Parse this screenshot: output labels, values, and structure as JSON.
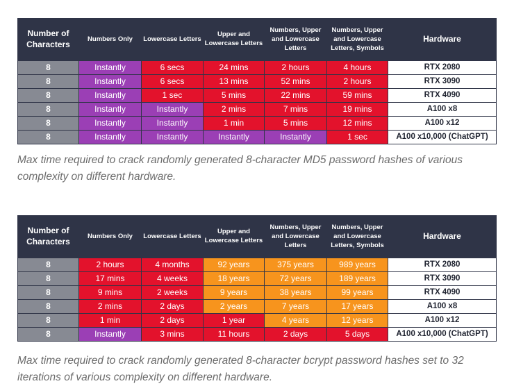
{
  "headers": {
    "chars": "Number of Characters",
    "numbers_only": "Numbers Only",
    "lowercase": "Lowercase Letters",
    "upper_lower": "Upper and Lowercase Letters",
    "num_upper_lower": "Numbers, Upper and Lowercase Letters",
    "num_upper_lower_sym": "Numbers, Upper and Lowercase Letters, Symbols",
    "hardware": "Hardware"
  },
  "colors": {
    "purple": "#9b3fb5",
    "red": "#e3122c",
    "orange": "#f7941d",
    "header": "#2f3447",
    "gray": "#878a93"
  },
  "md5": {
    "rows": [
      {
        "chars": "8",
        "cells": [
          {
            "text": "Instantly",
            "color": "purple"
          },
          {
            "text": "6 secs",
            "color": "red"
          },
          {
            "text": "24 mins",
            "color": "red"
          },
          {
            "text": "2 hours",
            "color": "red"
          },
          {
            "text": "4 hours",
            "color": "red"
          }
        ],
        "hardware": "RTX 2080"
      },
      {
        "chars": "8",
        "cells": [
          {
            "text": "Instantly",
            "color": "purple"
          },
          {
            "text": "6 secs",
            "color": "red"
          },
          {
            "text": "13 mins",
            "color": "red"
          },
          {
            "text": "52 mins",
            "color": "red"
          },
          {
            "text": "2 hours",
            "color": "red"
          }
        ],
        "hardware": "RTX 3090"
      },
      {
        "chars": "8",
        "cells": [
          {
            "text": "Instantly",
            "color": "purple"
          },
          {
            "text": "1 sec",
            "color": "red"
          },
          {
            "text": "5 mins",
            "color": "red"
          },
          {
            "text": "22 mins",
            "color": "red"
          },
          {
            "text": "59 mins",
            "color": "red"
          }
        ],
        "hardware": "RTX 4090"
      },
      {
        "chars": "8",
        "cells": [
          {
            "text": "Instantly",
            "color": "purple"
          },
          {
            "text": "Instantly",
            "color": "purple"
          },
          {
            "text": "2 mins",
            "color": "red"
          },
          {
            "text": "7 mins",
            "color": "red"
          },
          {
            "text": "19 mins",
            "color": "red"
          }
        ],
        "hardware": "A100 x8"
      },
      {
        "chars": "8",
        "cells": [
          {
            "text": "Instantly",
            "color": "purple"
          },
          {
            "text": "Instantly",
            "color": "purple"
          },
          {
            "text": "1 min",
            "color": "red"
          },
          {
            "text": "5 mins",
            "color": "red"
          },
          {
            "text": "12 mins",
            "color": "red"
          }
        ],
        "hardware": "A100 x12"
      },
      {
        "chars": "8",
        "cells": [
          {
            "text": "Instantly",
            "color": "purple"
          },
          {
            "text": "Instantly",
            "color": "purple"
          },
          {
            "text": "Instantly",
            "color": "purple"
          },
          {
            "text": "Instantly",
            "color": "purple"
          },
          {
            "text": "1 sec",
            "color": "red"
          }
        ],
        "hardware": "A100 x10,000 (ChatGPT)"
      }
    ],
    "caption": "Max time required to crack randomly generated 8-character MD5 password hashes of various complexity on different hardware."
  },
  "bcrypt": {
    "rows": [
      {
        "chars": "8",
        "cells": [
          {
            "text": "2 hours",
            "color": "red"
          },
          {
            "text": "4 months",
            "color": "red"
          },
          {
            "text": "92 years",
            "color": "orange"
          },
          {
            "text": "375 years",
            "color": "orange"
          },
          {
            "text": "989 years",
            "color": "orange"
          }
        ],
        "hardware": "RTX 2080"
      },
      {
        "chars": "8",
        "cells": [
          {
            "text": "17 mins",
            "color": "red"
          },
          {
            "text": "4 weeks",
            "color": "red"
          },
          {
            "text": "18 years",
            "color": "orange"
          },
          {
            "text": "72 years",
            "color": "orange"
          },
          {
            "text": "189 years",
            "color": "orange"
          }
        ],
        "hardware": "RTX 3090"
      },
      {
        "chars": "8",
        "cells": [
          {
            "text": "9 mins",
            "color": "red"
          },
          {
            "text": "2 weeks",
            "color": "red"
          },
          {
            "text": "9 years",
            "color": "orange"
          },
          {
            "text": "38 years",
            "color": "orange"
          },
          {
            "text": "99 years",
            "color": "orange"
          }
        ],
        "hardware": "RTX 4090"
      },
      {
        "chars": "8",
        "cells": [
          {
            "text": "2 mins",
            "color": "red"
          },
          {
            "text": "2 days",
            "color": "red"
          },
          {
            "text": "2 years",
            "color": "orange"
          },
          {
            "text": "7 years",
            "color": "orange"
          },
          {
            "text": "17 years",
            "color": "orange"
          }
        ],
        "hardware": "A100 x8"
      },
      {
        "chars": "8",
        "cells": [
          {
            "text": "1 min",
            "color": "red"
          },
          {
            "text": "2 days",
            "color": "red"
          },
          {
            "text": "1 year",
            "color": "red"
          },
          {
            "text": "4 years",
            "color": "orange"
          },
          {
            "text": "12 years",
            "color": "orange"
          }
        ],
        "hardware": "A100 x12"
      },
      {
        "chars": "8",
        "cells": [
          {
            "text": "Instantly",
            "color": "purple"
          },
          {
            "text": "3 mins",
            "color": "red"
          },
          {
            "text": "11 hours",
            "color": "red"
          },
          {
            "text": "2 days",
            "color": "red"
          },
          {
            "text": "5 days",
            "color": "red"
          }
        ],
        "hardware": "A100 x10,000 (ChatGPT)"
      }
    ],
    "caption": "Max time required to crack randomly generated 8-character bcrypt password hashes set to 32 iterations of various complexity on different hardware."
  }
}
